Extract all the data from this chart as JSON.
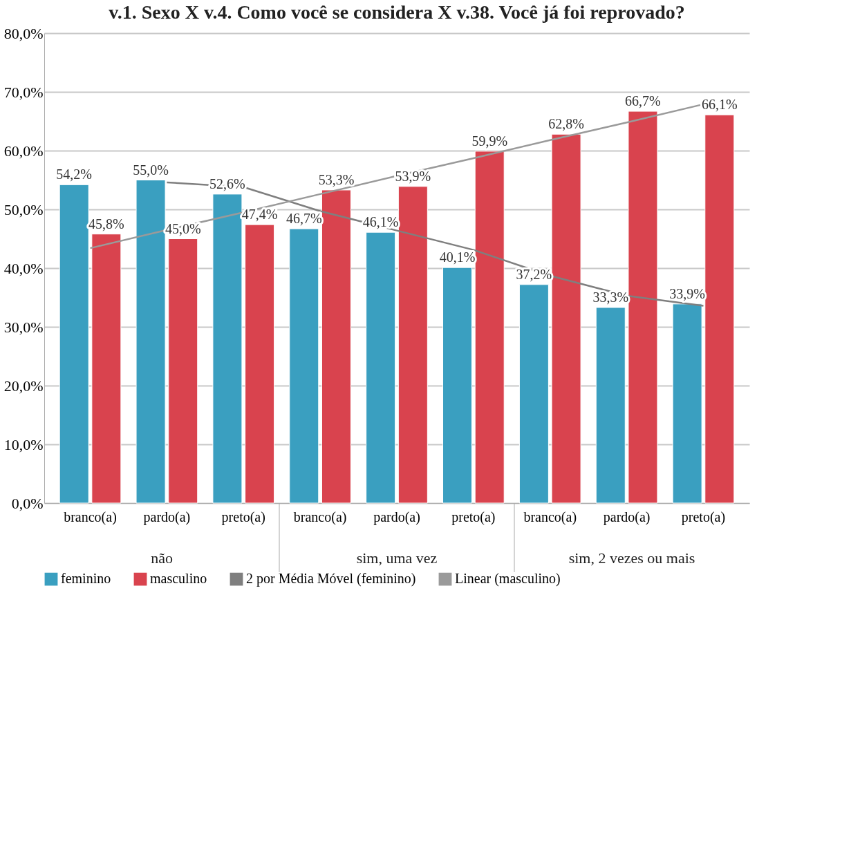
{
  "chart_data": {
    "type": "bar",
    "title": "v.1. Sexo X v.4. Como você se considera X v.38. Você já foi reprovado?",
    "categories": [
      "branco(a)",
      "pardo(a)",
      "preto(a)",
      "branco(a)",
      "pardo(a)",
      "preto(a)",
      "branco(a)",
      "pardo(a)",
      "preto(a)"
    ],
    "series": [
      {
        "name": "feminino",
        "color": "#3a9fc0",
        "values": [
          54.2,
          55.0,
          52.6,
          46.7,
          46.1,
          40.1,
          37.2,
          33.3,
          33.9
        ],
        "value_labels": [
          "54,2%",
          "55,0%",
          "52,6%",
          "46,7%",
          "46,1%",
          "40,1%",
          "37,2%",
          "33,3%",
          "33,9%"
        ]
      },
      {
        "name": "masculino",
        "color": "#d9434e",
        "values": [
          45.8,
          45.0,
          47.4,
          53.3,
          53.9,
          59.9,
          62.8,
          66.7,
          66.1
        ],
        "value_labels": [
          "45,8%",
          "45,0%",
          "47,4%",
          "53,3%",
          "53,9%",
          "59,9%",
          "62,8%",
          "66,7%",
          "66,1%"
        ]
      },
      {
        "name": "2 por Média Móvel (feminino)",
        "type": "line",
        "color": "#7f7f7f",
        "values": [
          null,
          54.6,
          53.8,
          49.7,
          46.4,
          43.1,
          38.7,
          35.3,
          33.6
        ]
      },
      {
        "name": "Linear (masculino)",
        "type": "line",
        "color": "#9a9a9a",
        "values": [
          43.4,
          46.5,
          49.5,
          52.6,
          55.7,
          58.7,
          61.8,
          64.8,
          67.9
        ]
      }
    ],
    "ylim": [
      0,
      80
    ],
    "yticks": [
      {
        "value": 0,
        "label": "0,0%"
      },
      {
        "value": 10,
        "label": "10,0%"
      },
      {
        "value": 20,
        "label": "20,0%"
      },
      {
        "value": 30,
        "label": "30,0%"
      },
      {
        "value": 40,
        "label": "40,0%"
      },
      {
        "value": 50,
        "label": "50,0%"
      },
      {
        "value": 60,
        "label": "60,0%"
      },
      {
        "value": 70,
        "label": "70,0%"
      },
      {
        "value": 80,
        "label": "80,0%"
      }
    ],
    "grid": "y",
    "legend": "bottom",
    "annotations": [
      "não",
      "sim, uma vez",
      "sim, 2 vezes ou mais"
    ]
  }
}
